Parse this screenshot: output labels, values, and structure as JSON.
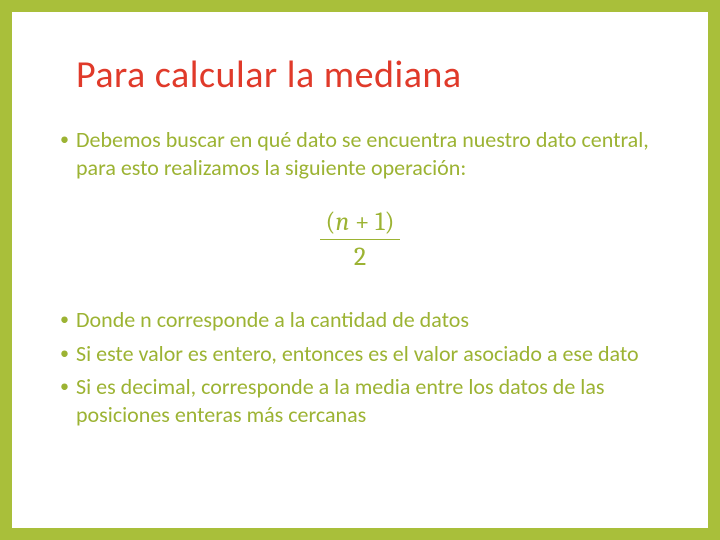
{
  "colors": {
    "border": "#a9bf3a",
    "title": "#e03a2a",
    "body": "#9cb333",
    "background": "#ffffff"
  },
  "typography": {
    "title_fontsize": 38,
    "body_fontsize": 22,
    "formula_fontsize": 26,
    "title_weight": 400
  },
  "title": "Para calcular la mediana",
  "bullet_char": "•",
  "items": {
    "intro": "Debemos buscar en qué dato se encuentra nuestro dato central, para esto realizamos la siguiente operación:",
    "note1": "Donde n corresponde a la cantidad de datos",
    "note2": "Si este valor es entero, entonces es el valor asociado a ese dato",
    "note3": "Si es decimal, corresponde a la media entre los datos de las posiciones enteras más cercanas"
  },
  "formula": {
    "numerator_left_paren": "(",
    "numerator_var": "n",
    "numerator_rest": " + 1)",
    "denominator": "2"
  }
}
